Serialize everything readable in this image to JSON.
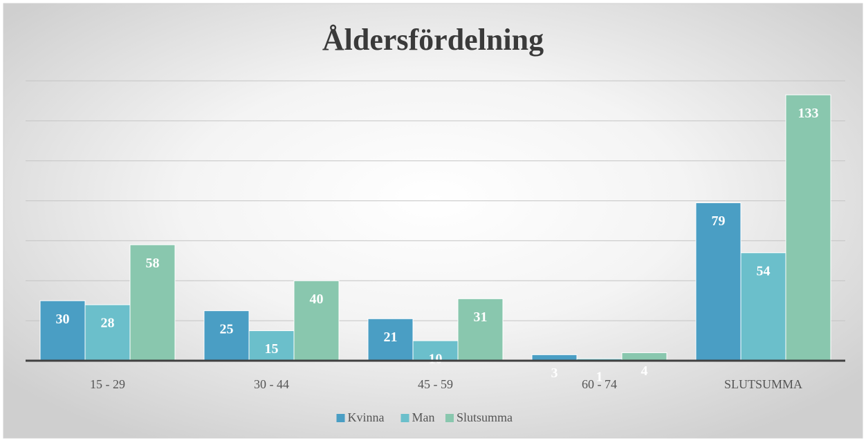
{
  "chart_data": {
    "type": "bar",
    "title": "Åldersfördelning",
    "categories": [
      "15 - 29",
      "30 - 44",
      "45 - 59",
      "60 - 74",
      "SLUTSUMMA"
    ],
    "series": [
      {
        "name": "Kvinna",
        "color": "#4a9ec4",
        "values": [
          30,
          25,
          21,
          3,
          79
        ]
      },
      {
        "name": "Man",
        "color": "#6bbfcb",
        "values": [
          28,
          15,
          10,
          1,
          54
        ]
      },
      {
        "name": "Slutsumma",
        "color": "#89c7ae",
        "values": [
          58,
          40,
          31,
          4,
          133
        ]
      }
    ],
    "ylim": [
      0,
      140
    ],
    "yticks": [
      0,
      20,
      40,
      60,
      80,
      100,
      120,
      140
    ],
    "grid": true,
    "legend": "bottom"
  }
}
